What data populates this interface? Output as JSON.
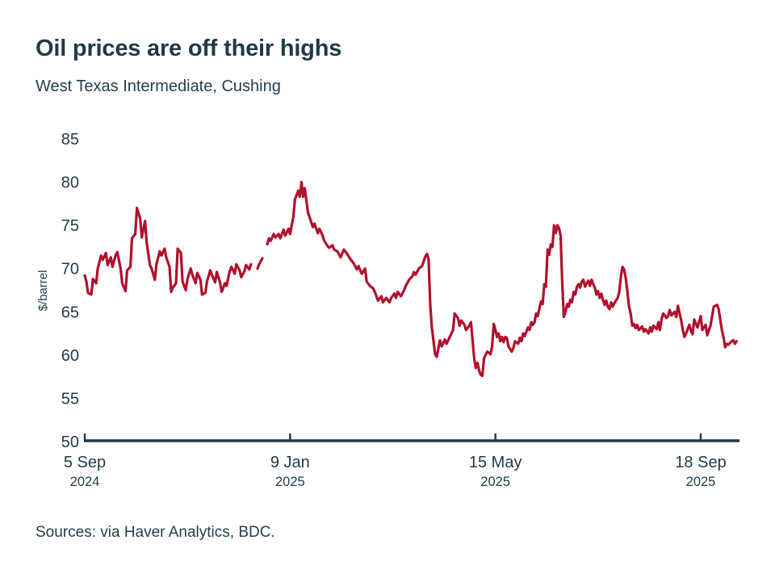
{
  "header": {
    "title": "Oil prices are off their highs",
    "subtitle": "West Texas Intermediate, Cushing"
  },
  "footer": {
    "source_text": "Sources: via Haver Analytics, BDC."
  },
  "colors": {
    "line": "#b0112d",
    "axis": "#20394a",
    "text": "#223c49"
  },
  "chart_data": {
    "type": "line",
    "title": "Oil prices are off their highs",
    "subtitle": "West Texas Intermediate, Cushing",
    "ylabel": "$/barrel",
    "ylim": [
      50,
      85
    ],
    "yticks": [
      50,
      55,
      60,
      65,
      70,
      75,
      80,
      85
    ],
    "grid": false,
    "legend": "none",
    "x_unit": "days since 5 Sep 2024 (line has short gaps at year-end holidays)",
    "xlim": [
      0,
      400
    ],
    "xticks": [
      {
        "t": 0,
        "label": "5 Sep",
        "year": "2024"
      },
      {
        "t": 126,
        "label": "9 Jan",
        "year": "2025"
      },
      {
        "t": 252,
        "label": "15 May",
        "year": "2025"
      },
      {
        "t": 378,
        "label": "18 Sep",
        "year": "2025"
      }
    ],
    "series": [
      {
        "name": "WTI Cushing spot price, $/barrel",
        "color": "#b0112d",
        "points": [
          [
            0,
            69.2
          ],
          [
            1,
            68.5
          ],
          [
            2,
            67.2
          ],
          [
            4,
            67.0
          ],
          [
            5,
            68.8
          ],
          [
            7,
            68.3
          ],
          [
            8,
            70.0
          ],
          [
            10,
            71.5
          ],
          [
            11,
            71.0
          ],
          [
            13,
            71.8
          ],
          [
            14,
            70.4
          ],
          [
            16,
            71.3
          ],
          [
            17,
            70.2
          ],
          [
            19,
            71.6
          ],
          [
            20,
            71.9
          ],
          [
            22,
            70.0
          ],
          [
            23,
            68.3
          ],
          [
            25,
            67.4
          ],
          [
            26,
            69.8
          ],
          [
            28,
            70.2
          ],
          [
            29,
            73.5
          ],
          [
            31,
            74.0
          ],
          [
            32,
            77.0
          ],
          [
            34,
            75.8
          ],
          [
            35,
            73.6
          ],
          [
            37,
            75.5
          ],
          [
            38,
            73.0
          ],
          [
            40,
            70.4
          ],
          [
            41,
            70.0
          ],
          [
            43,
            68.7
          ],
          [
            44,
            70.5
          ],
          [
            46,
            72.0
          ],
          [
            47,
            71.5
          ],
          [
            49,
            72.3
          ],
          [
            50,
            71.3
          ],
          [
            52,
            70.2
          ],
          [
            53,
            67.3
          ],
          [
            54,
            67.8
          ],
          [
            56,
            68.3
          ],
          [
            57,
            72.3
          ],
          [
            59,
            71.8
          ],
          [
            60,
            68.5
          ],
          [
            62,
            67.5
          ],
          [
            63,
            68.8
          ],
          [
            65,
            70.0
          ],
          [
            66,
            69.3
          ],
          [
            68,
            68.3
          ],
          [
            69,
            69.5
          ],
          [
            71,
            68.7
          ],
          [
            72,
            67.0
          ],
          [
            74,
            67.2
          ],
          [
            75,
            68.5
          ],
          [
            77,
            69.8
          ],
          [
            78,
            69.3
          ],
          [
            80,
            68.4
          ],
          [
            81,
            69.6
          ],
          [
            83,
            68.4
          ],
          [
            84,
            67.3
          ],
          [
            86,
            68.3
          ],
          [
            87,
            68.0
          ],
          [
            89,
            69.7
          ],
          [
            90,
            70.2
          ],
          [
            92,
            69.4
          ],
          [
            93,
            70.5
          ],
          [
            95,
            69.8
          ],
          [
            96,
            69.0
          ],
          [
            98,
            69.7
          ],
          [
            99,
            70.4
          ],
          [
            101,
            69.9
          ],
          [
            102,
            70.5
          ],
          null,
          [
            106,
            70.0
          ],
          [
            107,
            70.5
          ],
          [
            109,
            71.2
          ],
          null,
          [
            112,
            72.8
          ],
          [
            113,
            73.5
          ],
          [
            114,
            73.2
          ],
          [
            116,
            74.0
          ],
          [
            117,
            73.6
          ],
          [
            119,
            74.0
          ],
          [
            120,
            73.5
          ],
          [
            122,
            74.5
          ],
          [
            123,
            73.8
          ],
          [
            125,
            74.6
          ],
          [
            126,
            74.0
          ],
          [
            128,
            76.0
          ],
          [
            129,
            78.0
          ],
          [
            131,
            79.0
          ],
          [
            132,
            78.3
          ],
          [
            133,
            80.0
          ],
          [
            134,
            78.3
          ],
          [
            135,
            79.3
          ],
          [
            137,
            76.5
          ],
          [
            138,
            75.9
          ],
          [
            140,
            74.8
          ],
          [
            141,
            75.2
          ],
          [
            143,
            74.1
          ],
          [
            144,
            74.6
          ],
          [
            146,
            73.8
          ],
          [
            147,
            73.2
          ],
          [
            149,
            72.6
          ],
          [
            150,
            72.4
          ],
          [
            152,
            72.7
          ],
          [
            153,
            72.2
          ],
          [
            155,
            72.0
          ],
          [
            157,
            71.3
          ],
          [
            159,
            72.2
          ],
          [
            161,
            71.7
          ],
          [
            163,
            71.1
          ],
          [
            165,
            70.6
          ],
          [
            167,
            69.9
          ],
          [
            168,
            70.3
          ],
          [
            170,
            69.4
          ],
          [
            172,
            70.0
          ],
          [
            173,
            68.5
          ],
          [
            175,
            68.0
          ],
          [
            177,
            67.7
          ],
          [
            178,
            67.3
          ],
          [
            180,
            66.3
          ],
          [
            182,
            66.8
          ],
          [
            183,
            66.1
          ],
          [
            185,
            66.6
          ],
          [
            187,
            66.1
          ],
          [
            188,
            66.6
          ],
          [
            190,
            67.1
          ],
          [
            191,
            66.6
          ],
          [
            192,
            67.3
          ],
          [
            194,
            66.8
          ],
          [
            196,
            67.5
          ],
          [
            197,
            68.0
          ],
          [
            199,
            68.7
          ],
          [
            201,
            69.1
          ],
          [
            202,
            69.6
          ],
          [
            203,
            69.3
          ],
          [
            205,
            70.0
          ],
          [
            207,
            70.3
          ],
          [
            209,
            71.4
          ],
          [
            210,
            71.7
          ],
          [
            211,
            71.1
          ],
          [
            212,
            65.9
          ],
          [
            213,
            63.2
          ],
          [
            215,
            60.1
          ],
          [
            216,
            59.8
          ],
          [
            218,
            61.7
          ],
          [
            219,
            61.0
          ],
          [
            221,
            61.8
          ],
          [
            222,
            61.3
          ],
          [
            224,
            62.1
          ],
          [
            226,
            62.9
          ],
          [
            227,
            64.8
          ],
          [
            229,
            64.3
          ],
          [
            230,
            63.4
          ],
          [
            231,
            64.0
          ],
          [
            233,
            63.5
          ],
          [
            234,
            62.9
          ],
          [
            236,
            63.4
          ],
          [
            237,
            63.8
          ],
          [
            238,
            61.7
          ],
          [
            239,
            59.6
          ],
          [
            240,
            58.5
          ],
          [
            241,
            59.1
          ],
          [
            242,
            58.2
          ],
          [
            243,
            57.7
          ],
          [
            244,
            57.6
          ],
          [
            245,
            59.6
          ],
          [
            247,
            60.4
          ],
          [
            249,
            60.1
          ],
          [
            250,
            61.0
          ],
          [
            251,
            63.6
          ],
          [
            252,
            62.9
          ],
          [
            253,
            62.1
          ],
          [
            254,
            62.5
          ],
          [
            255,
            61.6
          ],
          [
            256,
            62.1
          ],
          [
            257,
            61.5
          ],
          [
            258,
            62.1
          ],
          [
            259,
            62.0
          ],
          [
            260,
            61.0
          ],
          [
            262,
            60.4
          ],
          [
            263,
            60.8
          ],
          [
            264,
            61.6
          ],
          [
            266,
            61.3
          ],
          [
            267,
            62.0
          ],
          [
            268,
            61.6
          ],
          [
            269,
            62.5
          ],
          [
            270,
            62.2
          ],
          [
            272,
            63.2
          ],
          [
            273,
            62.9
          ],
          [
            274,
            63.8
          ],
          [
            275,
            63.5
          ],
          [
            276,
            63.8
          ],
          [
            277,
            64.8
          ],
          [
            278,
            64.5
          ],
          [
            279,
            65.4
          ],
          [
            280,
            66.2
          ],
          [
            281,
            65.9
          ],
          [
            282,
            68.2
          ],
          [
            283,
            67.9
          ],
          [
            284,
            72.2
          ],
          [
            285,
            71.6
          ],
          [
            286,
            72.8
          ],
          [
            287,
            72.5
          ],
          [
            288,
            75.0
          ],
          [
            289,
            74.1
          ],
          [
            290,
            75.0
          ],
          [
            291,
            74.7
          ],
          [
            292,
            73.8
          ],
          [
            293,
            68.5
          ],
          [
            294,
            64.4
          ],
          [
            295,
            65.0
          ],
          [
            296,
            65.9
          ],
          [
            297,
            65.6
          ],
          [
            298,
            66.4
          ],
          [
            299,
            66.1
          ],
          [
            300,
            67.3
          ],
          [
            301,
            67.0
          ],
          [
            302,
            67.9
          ],
          [
            303,
            68.2
          ],
          [
            304,
            67.8
          ],
          [
            305,
            68.5
          ],
          [
            306,
            68.7
          ],
          [
            307,
            67.9
          ],
          [
            308,
            68.3
          ],
          [
            309,
            68.6
          ],
          [
            310,
            68.0
          ],
          [
            311,
            68.7
          ],
          [
            312,
            68.2
          ],
          [
            313,
            67.8
          ],
          [
            314,
            67.0
          ],
          [
            315,
            67.4
          ],
          [
            316,
            66.6
          ],
          [
            317,
            67.1
          ],
          [
            318,
            66.4
          ],
          [
            319,
            65.8
          ],
          [
            320,
            66.3
          ],
          [
            321,
            65.6
          ],
          [
            322,
            65.3
          ],
          [
            323,
            66.1
          ],
          [
            324,
            65.6
          ],
          [
            325,
            66.0
          ],
          [
            326,
            66.3
          ],
          [
            327,
            66.6
          ],
          [
            328,
            67.3
          ],
          [
            329,
            69.1
          ],
          [
            330,
            70.2
          ],
          [
            331,
            69.9
          ],
          [
            332,
            68.9
          ],
          [
            333,
            67.3
          ],
          [
            334,
            65.6
          ],
          [
            335,
            64.8
          ],
          [
            336,
            63.4
          ],
          [
            337,
            63.6
          ],
          [
            338,
            63.1
          ],
          [
            339,
            63.5
          ],
          [
            340,
            62.9
          ],
          [
            342,
            63.3
          ],
          [
            343,
            62.7
          ],
          [
            344,
            63.0
          ],
          [
            346,
            62.5
          ],
          [
            347,
            63.2
          ],
          [
            348,
            62.7
          ],
          [
            349,
            63.4
          ],
          [
            351,
            63.0
          ],
          [
            352,
            63.8
          ],
          [
            353,
            62.9
          ],
          [
            354,
            64.2
          ],
          [
            355,
            64.8
          ],
          [
            357,
            64.3
          ],
          [
            358,
            64.5
          ],
          [
            359,
            65.2
          ],
          [
            360,
            64.6
          ],
          [
            362,
            65.0
          ],
          [
            363,
            64.4
          ],
          [
            364,
            65.7
          ],
          [
            366,
            64.0
          ],
          [
            367,
            62.9
          ],
          [
            368,
            62.1
          ],
          [
            369,
            62.5
          ],
          [
            371,
            63.5
          ],
          [
            372,
            62.8
          ],
          [
            373,
            62.4
          ],
          [
            374,
            64.1
          ],
          [
            376,
            63.2
          ],
          [
            378,
            64.5
          ],
          [
            379,
            62.9
          ],
          [
            381,
            63.5
          ],
          [
            382,
            62.3
          ],
          [
            384,
            63.4
          ],
          [
            385,
            64.5
          ],
          [
            386,
            65.6
          ],
          [
            388,
            65.8
          ],
          [
            389,
            65.3
          ],
          [
            390,
            64.1
          ],
          [
            391,
            62.9
          ],
          [
            392,
            62.0
          ],
          [
            393,
            60.9
          ],
          [
            394,
            61.3
          ],
          [
            395,
            61.2
          ],
          [
            397,
            61.6
          ],
          [
            398,
            61.7
          ],
          [
            399,
            61.3
          ],
          [
            400,
            61.6
          ]
        ]
      }
    ]
  }
}
